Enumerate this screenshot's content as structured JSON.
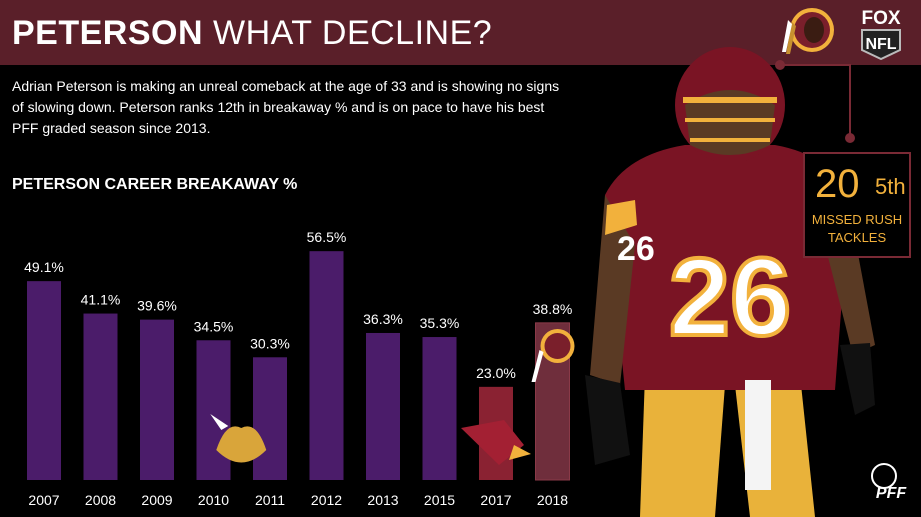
{
  "header": {
    "title_bold": "PETERSON",
    "title_light": "WHAT DECLINE?"
  },
  "description": "Adrian Peterson is making an unreal comeback at the age of 33 and is showing no signs of slowing down. Peterson ranks 12th in breakaway % and is on pace to have his best PFF graded season since 2013.",
  "stat": {
    "value": "20",
    "rank": "5th",
    "label_line1": "MISSED RUSH",
    "label_line2": "TACKLES"
  },
  "logos": {
    "fox_line1": "FOX",
    "fox_line2": "NFL",
    "pff": "PFF",
    "jersey_number": "26"
  },
  "chart_data": {
    "type": "bar",
    "title": "PETERSON CAREER BREAKAWAY %",
    "categories": [
      "2007",
      "2008",
      "2009",
      "2010",
      "2011",
      "2012",
      "2013",
      "2015",
      "2017",
      "2018"
    ],
    "values": [
      49.1,
      41.1,
      39.6,
      34.5,
      30.3,
      56.5,
      36.3,
      35.3,
      23.0,
      38.8
    ],
    "value_labels": [
      "49.1%",
      "41.1%",
      "39.6%",
      "34.5%",
      "30.3%",
      "56.5%",
      "36.3%",
      "35.3%",
      "23.0%",
      "38.8%"
    ],
    "teams": [
      "vikings",
      "vikings",
      "vikings",
      "vikings",
      "vikings",
      "vikings",
      "vikings",
      "vikings",
      "cardinals",
      "redskins"
    ],
    "colors": {
      "vikings": "#4b1c6a",
      "cardinals": "#8a2232",
      "redskins": "#6f2e3c",
      "accent": "#f2b13c",
      "header": "#5a1f29"
    },
    "grid": false,
    "legend": "none"
  }
}
